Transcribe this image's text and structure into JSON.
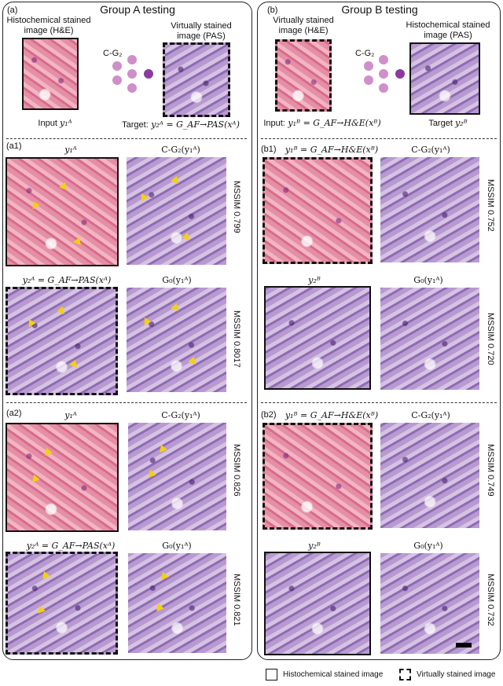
{
  "panelA": {
    "title": "Group A testing",
    "label": "(a)",
    "histo_caption": "Histochemical stained image (H&E)",
    "virt_caption": "Virtually stained image (PAS)",
    "net_label": "C-G₂",
    "input_label": "Input",
    "input_sym": "y₁ᴬ",
    "target_label": "Target:",
    "target_eq": "y₂ᴬ = G_AF→PAS(xᴬ)",
    "a1": {
      "label": "(a1)",
      "top_left": "y₁ᴬ",
      "top_right": "C-G₂(y₁ᴬ)",
      "bottom_left": "y₂ᴬ = G_AF→PAS(xᴬ)",
      "bottom_right": "G₀(y₁ᴬ)",
      "mssim_top": "MSSIM 0.799",
      "mssim_bottom": "MSSIM 0.8017"
    },
    "a2": {
      "label": "(a2)",
      "top_left": "y₁ᴬ",
      "top_right": "C-G₂(y₁ᴬ)",
      "bottom_left": "y₂ᴬ = G_AF→PAS(xᴬ)",
      "bottom_right": "G₀(y₁ᴬ)",
      "mssim_top": "MSSIM 0.826",
      "mssim_bottom": "MSSIM 0.821"
    }
  },
  "panelB": {
    "title": "Group B testing",
    "label": "(b)",
    "virt_caption": "Virtually stained image (H&E)",
    "histo_caption": "Histochemical stained image (PAS)",
    "net_label": "C-G₂",
    "input_label": "Input:",
    "input_eq": "y₁ᴮ = G_AF→H&E(xᴮ)",
    "target_label": "Target",
    "target_sym": "y₂ᴮ",
    "b1": {
      "label": "(b1)",
      "top_left": "y₁ᴮ = G_AF→H&E(xᴮ)",
      "top_right": "C-G₂(y₁ᴬ)",
      "bottom_left": "y₂ᴮ",
      "bottom_right": "G₀(y₁ᴬ)",
      "mssim_top": "MSSIM 0.752",
      "mssim_bottom": "MSSIM 0.720"
    },
    "b2": {
      "label": "(b2)",
      "top_left": "y₁ᴮ = G_AF→H&E(xᴮ)",
      "top_right": "C-G₂(y₁ᴬ)",
      "bottom_left": "y₂ᴮ",
      "bottom_right": "G₀(y₁ᴬ)",
      "mssim_top": "MSSIM 0.749",
      "mssim_bottom": "MSSIM 0.732"
    }
  },
  "legend": {
    "solid_label": "Histochemical stained image",
    "dashed_label": "Virtually stained image"
  },
  "colors": {
    "arrow": "#f5d10a",
    "he": "#e58fa6",
    "pas": "#9b7bbf"
  }
}
